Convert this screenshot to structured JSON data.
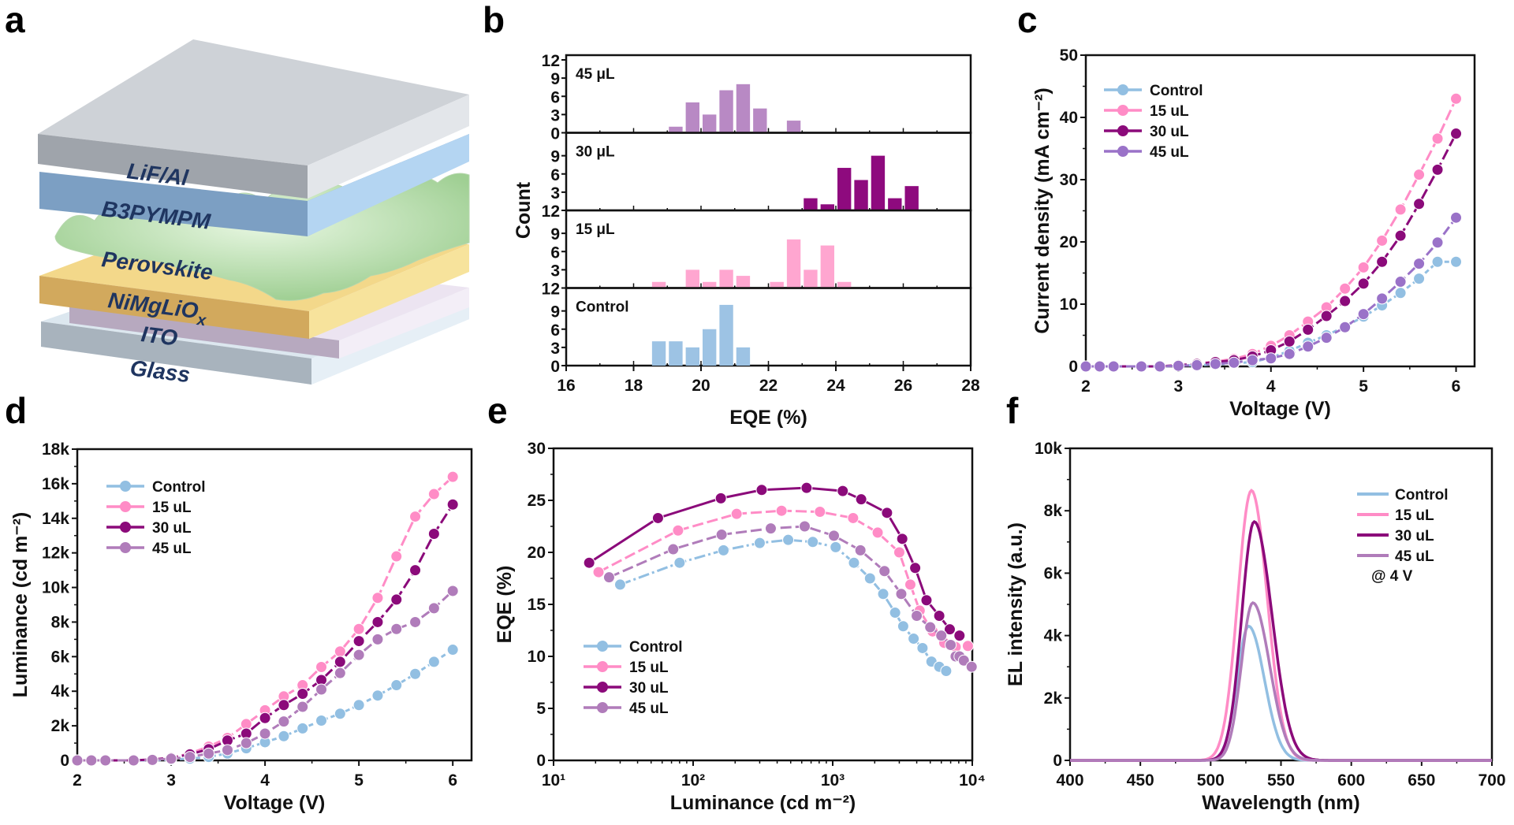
{
  "colors": {
    "control": "#92bfe2",
    "ul15": "#ff8cc6",
    "ul30": "#8b0a7a",
    "ul45": "#9a72c8",
    "ul45_alt": "#b07cba",
    "hist45": "#b889c4",
    "hist30": "#8e0a7e",
    "hist15": "#ffa6d0",
    "histControl": "#9dc3e4"
  },
  "panel_a": {
    "letter": "a",
    "layers": [
      {
        "name": "LiF/Al",
        "color": "#c6cacf"
      },
      {
        "name": "B3PYMPM",
        "color": "#8fb6e0"
      },
      {
        "name": "Perovskite",
        "color": "#bde0b3"
      },
      {
        "name": "NiMgLiOx",
        "color": "#f2cf7a"
      },
      {
        "name": "ITO",
        "color": "#d9cde0"
      },
      {
        "name": "Glass",
        "color": "#c9d6e2"
      }
    ],
    "nimg_main": "NiMgLiO",
    "nimg_sub": "x"
  },
  "chart_data": [
    {
      "id": "b",
      "letter": "b",
      "type": "bar",
      "title": "",
      "xlabel": "EQE (%)",
      "ylabel": "Count",
      "xlim": [
        16,
        28
      ],
      "xticks": [
        "16",
        "18",
        "20",
        "22",
        "24",
        "26",
        "28"
      ],
      "ylim": [
        0,
        12
      ],
      "yticks": [
        "0",
        "3",
        "6",
        "9",
        "12"
      ],
      "bin_width": 0.5,
      "subplots": [
        {
          "name": "45 μL",
          "label": "45 μL",
          "color_key": "hist45",
          "bins": [
            19.0,
            19.5,
            20.0,
            20.5,
            21.0,
            21.5,
            22.5
          ],
          "counts": [
            1,
            5,
            3,
            7,
            8,
            4,
            2
          ]
        },
        {
          "name": "30 μL",
          "label": "30 μL",
          "color_key": "hist30",
          "bins": [
            23.0,
            23.5,
            24.0,
            24.5,
            25.0,
            25.5,
            26.0
          ],
          "counts": [
            2,
            1,
            7,
            5,
            9,
            2,
            4
          ]
        },
        {
          "name": "15 μL",
          "label": "15 μL",
          "color_key": "hist15",
          "bins": [
            18.5,
            19.5,
            20.0,
            20.5,
            21.0,
            22.0,
            22.5,
            23.0,
            23.5,
            24.0
          ],
          "counts": [
            1,
            3,
            1,
            3,
            2,
            1,
            8,
            3,
            7,
            1
          ]
        },
        {
          "name": "Control",
          "label": "Control",
          "color_key": "histControl",
          "bins": [
            18.5,
            19.0,
            19.5,
            20.0,
            20.5,
            21.0
          ],
          "counts": [
            4,
            4,
            3,
            6,
            10,
            3
          ]
        }
      ]
    },
    {
      "id": "c",
      "letter": "c",
      "type": "line",
      "xlabel": "Voltage (V)",
      "ylabel": "Current density (mA cm⁻²)",
      "xlim": [
        2,
        6.2
      ],
      "xticks": [
        "2",
        "3",
        "4",
        "5",
        "6"
      ],
      "ylim": [
        0,
        50
      ],
      "yticks": [
        "0",
        "10",
        "20",
        "30",
        "40",
        "50"
      ],
      "legend_position": "top-left",
      "x": [
        2.0,
        2.15,
        2.3,
        2.6,
        2.8,
        3.0,
        3.2,
        3.4,
        3.6,
        3.8,
        4.0,
        4.2,
        4.4,
        4.6,
        4.8,
        5.0,
        5.2,
        5.4,
        5.6,
        5.8,
        6.0
      ],
      "series": [
        {
          "name": "Control",
          "color_key": "control",
          "dash": "6,4",
          "values": [
            0,
            0,
            0,
            0,
            0,
            0.1,
            0.2,
            0.3,
            0.5,
            0.7,
            1.4,
            2.5,
            3.8,
            5.0,
            6.4,
            8.0,
            9.8,
            11.8,
            14.1,
            16.8,
            16.8
          ]
        },
        {
          "name": "15 uL",
          "color_key": "ul15",
          "dash": "14,5",
          "values": [
            0,
            0,
            0,
            0,
            0,
            0.2,
            0.4,
            0.8,
            1.2,
            2.0,
            3.3,
            5.0,
            7.2,
            9.5,
            12.5,
            15.9,
            20.2,
            25.2,
            30.8,
            36.6,
            43.0
          ]
        },
        {
          "name": "30 uL",
          "color_key": "ul30",
          "dash": "14,5",
          "values": [
            0,
            0,
            0,
            0,
            0,
            0.2,
            0.4,
            0.7,
            1.0,
            1.6,
            2.6,
            4.0,
            5.9,
            8.1,
            10.5,
            13.3,
            16.8,
            21.0,
            26.1,
            31.6,
            37.4
          ]
        },
        {
          "name": "45 uL",
          "color_key": "ul45",
          "dash": "12,5",
          "values": [
            0,
            0,
            0,
            0,
            0,
            0.1,
            0.2,
            0.4,
            0.6,
            1.0,
            1.3,
            2.0,
            3.2,
            4.6,
            6.3,
            8.4,
            10.9,
            13.6,
            16.5,
            19.9,
            23.9
          ]
        }
      ]
    },
    {
      "id": "d",
      "letter": "d",
      "type": "line",
      "xlabel": "Voltage (V)",
      "ylabel": "Luminance (cd m⁻²)",
      "xlim": [
        2,
        6.2
      ],
      "xticks": [
        "2",
        "3",
        "4",
        "5",
        "6"
      ],
      "ylim": [
        0,
        18000
      ],
      "yticks": [
        "0",
        "2k",
        "4k",
        "6k",
        "8k",
        "10k",
        "12k",
        "14k",
        "16k",
        "18k"
      ],
      "legend_position": "top-left",
      "x": [
        2.0,
        2.15,
        2.3,
        2.6,
        2.8,
        3.0,
        3.2,
        3.4,
        3.6,
        3.8,
        4.0,
        4.2,
        4.4,
        4.6,
        4.8,
        5.0,
        5.2,
        5.4,
        5.6,
        5.8,
        6.0
      ],
      "series": [
        {
          "name": "Control",
          "color_key": "control",
          "dash": "6,4",
          "values": [
            0,
            0,
            0,
            0,
            0,
            50,
            100,
            200,
            400,
            700,
            1050,
            1400,
            1850,
            2300,
            2700,
            3200,
            3750,
            4350,
            5000,
            5700,
            6400
          ]
        },
        {
          "name": "15 uL",
          "color_key": "ul15",
          "dash": "14,5",
          "values": [
            0,
            0,
            0,
            0,
            50,
            150,
            400,
            800,
            1300,
            2100,
            2900,
            3700,
            4350,
            5400,
            6300,
            7600,
            9400,
            11800,
            14100,
            15400,
            16400
          ]
        },
        {
          "name": "30 uL",
          "color_key": "ul30",
          "dash": "14,5",
          "values": [
            0,
            0,
            0,
            0,
            50,
            150,
            350,
            650,
            1150,
            1550,
            2450,
            3200,
            3850,
            4650,
            5700,
            6900,
            8000,
            9300,
            11000,
            13100,
            14800
          ]
        },
        {
          "name": "45 uL",
          "color_key": "ul45_alt",
          "dash": "12,5",
          "values": [
            0,
            0,
            0,
            0,
            30,
            100,
            200,
            400,
            600,
            1000,
            1550,
            2250,
            3100,
            4100,
            5050,
            6100,
            7000,
            7600,
            8000,
            8800,
            9800
          ]
        }
      ]
    },
    {
      "id": "e",
      "letter": "e",
      "type": "line",
      "xlabel": "Luminance (cd m⁻²)",
      "ylabel": "EQE (%)",
      "xscale": "log",
      "xlim": [
        10,
        10000
      ],
      "xticks": [
        "10¹",
        "10²",
        "10³",
        "10⁴"
      ],
      "ylim": [
        0,
        30
      ],
      "yticks": [
        "0",
        "5",
        "10",
        "15",
        "20",
        "25",
        "30"
      ],
      "legend_position": "bottom-left",
      "series": [
        {
          "name": "Control",
          "color_key": "control",
          "dash": "14,4,3,4",
          "x": [
            30,
            80,
            165,
            300,
            480,
            720,
            1050,
            1420,
            1850,
            2300,
            2800,
            3200,
            3800,
            4400,
            5100,
            5800,
            6500
          ],
          "values": [
            16.9,
            19.0,
            20.2,
            20.9,
            21.2,
            21.0,
            20.5,
            19.0,
            17.5,
            16.0,
            14.2,
            12.9,
            11.7,
            10.8,
            9.5,
            9.0,
            8.6
          ]
        },
        {
          "name": "15 uL",
          "color_key": "ul15",
          "dash": "14,5",
          "x": [
            21,
            78,
            205,
            430,
            810,
            1400,
            2100,
            3000,
            3600,
            4200,
            5200,
            6300,
            7600,
            9300
          ],
          "values": [
            18.1,
            22.1,
            23.7,
            24.0,
            23.9,
            23.3,
            21.9,
            20.0,
            16.9,
            14.4,
            12.4,
            11.3,
            10.9,
            11.0
          ]
        },
        {
          "name": "30 uL",
          "color_key": "ul30",
          "dash": "none",
          "x": [
            18,
            56,
            158,
            310,
            650,
            1180,
            1600,
            2450,
            3150,
            3900,
            4700,
            5800,
            6900,
            8100
          ],
          "values": [
            19.0,
            23.3,
            25.2,
            26.0,
            26.2,
            25.9,
            25.1,
            23.8,
            21.3,
            18.5,
            15.4,
            13.9,
            12.6,
            12.0
          ]
        },
        {
          "name": "45 uL",
          "color_key": "ul45_alt",
          "dash": "14,5",
          "x": [
            25,
            72,
            160,
            360,
            630,
            1020,
            1580,
            2350,
            3100,
            4000,
            5000,
            6000,
            7000,
            7600,
            8100,
            8700,
            9900
          ],
          "values": [
            17.6,
            20.3,
            21.7,
            22.3,
            22.5,
            21.6,
            20.2,
            18.2,
            16.0,
            13.9,
            12.8,
            12.0,
            11.1,
            10.0,
            10.0,
            9.6,
            9.0
          ]
        }
      ]
    },
    {
      "id": "f",
      "letter": "f",
      "type": "line",
      "xlabel": "Wavelength (nm)",
      "ylabel": "EL intensity (a.u.)",
      "xlim": [
        400,
        700
      ],
      "xticks": [
        "400",
        "450",
        "500",
        "550",
        "600",
        "650",
        "700"
      ],
      "ylim": [
        0,
        10000
      ],
      "yticks": [
        "0",
        "2k",
        "4k",
        "6k",
        "8k",
        "10k"
      ],
      "legend_position": "top-right",
      "annotation": "@ 4 V",
      "series": [
        {
          "name": "Control",
          "color_key": "control",
          "peak_nm": 527,
          "peak_value": 4300,
          "fwhm_left": 11,
          "fwhm_right": 15
        },
        {
          "name": "15 uL",
          "color_key": "ul15",
          "peak_nm": 529,
          "peak_value": 8650,
          "fwhm_left": 13,
          "fwhm_right": 15
        },
        {
          "name": "30 uL",
          "color_key": "ul30",
          "peak_nm": 531,
          "peak_value": 7650,
          "fwhm_left": 12,
          "fwhm_right": 17
        },
        {
          "name": "45 uL",
          "color_key": "ul45_alt",
          "peak_nm": 530,
          "peak_value": 5050,
          "fwhm_left": 11,
          "fwhm_right": 16
        }
      ]
    }
  ]
}
